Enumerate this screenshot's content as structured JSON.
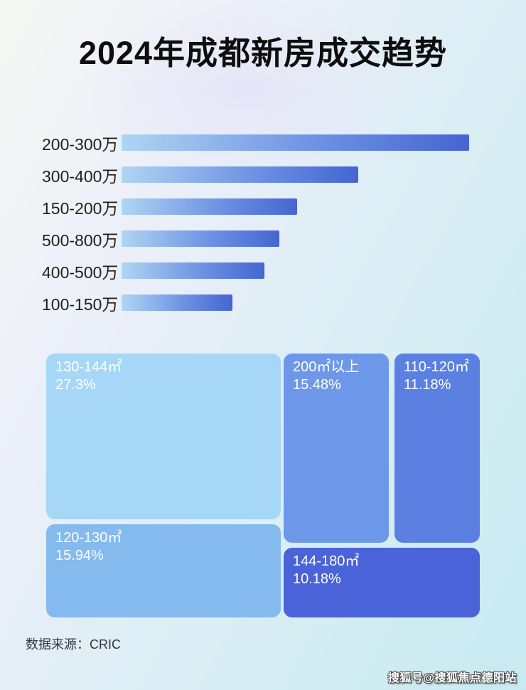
{
  "page": {
    "title": "2024年成都新房成交趋势",
    "source_label": "数据来源：CRIC",
    "watermark": "搜狐号@搜狐焦点德阳站"
  },
  "colors": {
    "bar_gradient_start": "#afd5f3",
    "bar_gradient_end": "#4565d2",
    "background_top_left": "#f6f8f4",
    "background_bottom_right": "#c7eaf1",
    "title_text": "#0e0e0e",
    "treemap_text": "#ffffff"
  },
  "chart_data": [
    {
      "type": "bar",
      "orientation": "horizontal",
      "title": "2024年成都新房成交趋势",
      "categories": [
        "200-300万",
        "300-400万",
        "150-200万",
        "500-800万",
        "400-500万",
        "100-150万"
      ],
      "values": [
        100,
        68,
        50.5,
        45.4,
        41.1,
        31.9
      ],
      "values_note": "no numeric axis labels shown; values are bar lengths as percent of the longest bar",
      "xlabel": "",
      "ylabel": "",
      "grid": false,
      "legend": false,
      "sort": "descending"
    },
    {
      "type": "treemap",
      "title": "",
      "legend": false,
      "items": [
        {
          "label": "130-144㎡",
          "pct": "27.3%",
          "value": 27.3,
          "color": "#a7d7f7"
        },
        {
          "label": "120-130㎡",
          "pct": "15.94%",
          "value": 15.94,
          "color": "#85baef"
        },
        {
          "label": "200㎡以上",
          "pct": "15.48%",
          "value": 15.48,
          "color": "#6d97e8"
        },
        {
          "label": "110-120㎡",
          "pct": "11.18%",
          "value": 11.18,
          "color": "#5b80e2"
        },
        {
          "label": "144-180㎡",
          "pct": "10.18%",
          "value": 10.18,
          "color": "#4a63d8"
        }
      ]
    }
  ]
}
